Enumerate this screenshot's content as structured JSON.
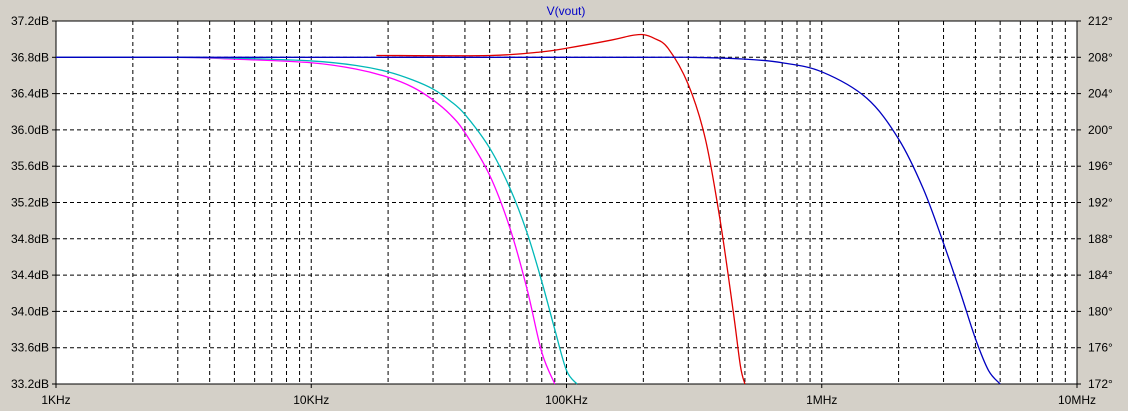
{
  "chart_data": {
    "type": "line",
    "title": "V(vout)",
    "x_scale": "log",
    "xlim": [
      1000,
      10000000
    ],
    "ylim": [
      33.2,
      37.2
    ],
    "y2lim": [
      172,
      212
    ],
    "grid": true,
    "x_ticks": [
      {
        "value": 1000,
        "label": "1KHz"
      },
      {
        "value": 10000,
        "label": "10KHz"
      },
      {
        "value": 100000,
        "label": "100KHz"
      },
      {
        "value": 1000000,
        "label": "1MHz"
      },
      {
        "value": 10000000,
        "label": "10MHz"
      }
    ],
    "y_ticks": [
      {
        "value": 37.2,
        "label": "37.2dB"
      },
      {
        "value": 36.8,
        "label": "36.8dB"
      },
      {
        "value": 36.4,
        "label": "36.4dB"
      },
      {
        "value": 36.0,
        "label": "36.0dB"
      },
      {
        "value": 35.6,
        "label": "35.6dB"
      },
      {
        "value": 35.2,
        "label": "35.2dB"
      },
      {
        "value": 34.8,
        "label": "34.8dB"
      },
      {
        "value": 34.4,
        "label": "34.4dB"
      },
      {
        "value": 34.0,
        "label": "34.0dB"
      },
      {
        "value": 33.6,
        "label": "33.6dB"
      },
      {
        "value": 33.2,
        "label": "33.2dB"
      }
    ],
    "y2_ticks": [
      {
        "value": 212,
        "label": "212°"
      },
      {
        "value": 208,
        "label": "208°"
      },
      {
        "value": 204,
        "label": "204°"
      },
      {
        "value": 200,
        "label": "200°"
      },
      {
        "value": 196,
        "label": "196°"
      },
      {
        "value": 192,
        "label": "192°"
      },
      {
        "value": 188,
        "label": "188°"
      },
      {
        "value": 184,
        "label": "184°"
      },
      {
        "value": 180,
        "label": "180°"
      },
      {
        "value": 176,
        "label": "176°"
      },
      {
        "value": 172,
        "label": "172°"
      }
    ],
    "series": [
      {
        "color": "#ff00ff",
        "x": [
          1000,
          3000,
          5000,
          10000,
          15000,
          20000,
          25000,
          30000,
          35000,
          40000,
          50000,
          60000,
          70000,
          80000,
          90000
        ],
        "y": [
          36.8,
          36.8,
          36.78,
          36.74,
          36.67,
          36.58,
          36.47,
          36.33,
          36.17,
          35.97,
          35.5,
          34.92,
          34.25,
          33.55,
          33.2
        ]
      },
      {
        "color": "#00b8b8",
        "x": [
          1000,
          3000,
          5000,
          10000,
          15000,
          20000,
          25000,
          30000,
          35000,
          40000,
          50000,
          60000,
          70000,
          80000,
          90000,
          100000,
          110000
        ],
        "y": [
          36.8,
          36.8,
          36.79,
          36.76,
          36.71,
          36.64,
          36.55,
          36.45,
          36.32,
          36.17,
          35.8,
          35.36,
          34.87,
          34.33,
          33.8,
          33.35,
          33.2
        ]
      },
      {
        "color": "#e00000",
        "x": [
          18000,
          50000,
          80000,
          100000,
          150000,
          180000,
          200000,
          220000,
          250000,
          300000,
          350000,
          400000,
          450000,
          480000,
          500000
        ],
        "y": [
          36.82,
          36.82,
          36.86,
          36.9,
          36.99,
          37.04,
          37.05,
          37.01,
          36.9,
          36.5,
          35.9,
          35.0,
          34.0,
          33.4,
          33.2
        ]
      },
      {
        "color": "#0000c0",
        "x": [
          1000,
          3000,
          10000,
          100000,
          300000,
          500000,
          700000,
          1000000,
          1500000,
          2000000,
          2500000,
          3000000,
          3500000,
          4000000,
          4500000,
          5000000
        ],
        "y": [
          36.8,
          36.8,
          36.8,
          36.8,
          36.8,
          36.78,
          36.74,
          36.64,
          36.35,
          35.9,
          35.35,
          34.75,
          34.2,
          33.7,
          33.35,
          33.2
        ]
      }
    ]
  }
}
